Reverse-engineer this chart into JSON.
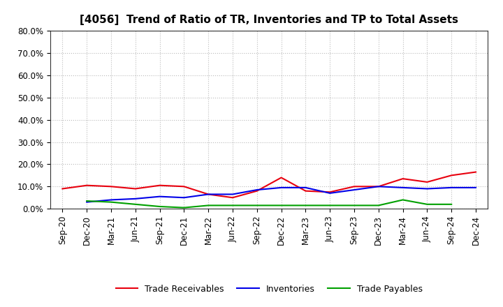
{
  "title": "[4056]  Trend of Ratio of TR, Inventories and TP to Total Assets",
  "x_labels": [
    "Sep-20",
    "Dec-20",
    "Mar-21",
    "Jun-21",
    "Sep-21",
    "Dec-21",
    "Mar-22",
    "Jun-22",
    "Sep-22",
    "Dec-22",
    "Mar-23",
    "Jun-23",
    "Sep-23",
    "Dec-23",
    "Mar-24",
    "Jun-24",
    "Sep-24",
    "Dec-24"
  ],
  "trade_receivables": [
    9.0,
    10.5,
    10.0,
    9.0,
    10.5,
    10.0,
    6.5,
    5.0,
    8.0,
    14.0,
    8.0,
    7.5,
    10.0,
    10.0,
    13.5,
    12.0,
    15.0,
    16.5
  ],
  "inventories": [
    null,
    3.0,
    4.0,
    4.5,
    5.5,
    5.0,
    6.5,
    6.5,
    8.5,
    9.5,
    9.5,
    7.0,
    8.5,
    10.0,
    9.5,
    9.0,
    9.5,
    9.5
  ],
  "trade_payables": [
    null,
    3.5,
    3.0,
    2.0,
    1.0,
    0.5,
    1.5,
    1.5,
    1.5,
    1.5,
    1.5,
    1.5,
    1.5,
    1.5,
    4.0,
    2.0,
    2.0,
    null
  ],
  "tr_color": "#e8000e",
  "inv_color": "#0000e8",
  "tp_color": "#00a000",
  "ylim": [
    0,
    80
  ],
  "yticks": [
    0,
    10,
    20,
    30,
    40,
    50,
    60,
    70,
    80
  ],
  "background_color": "#ffffff",
  "grid_color": "#bbbbbb",
  "title_fontsize": 11,
  "tick_fontsize": 8.5,
  "legend_fontsize": 9
}
